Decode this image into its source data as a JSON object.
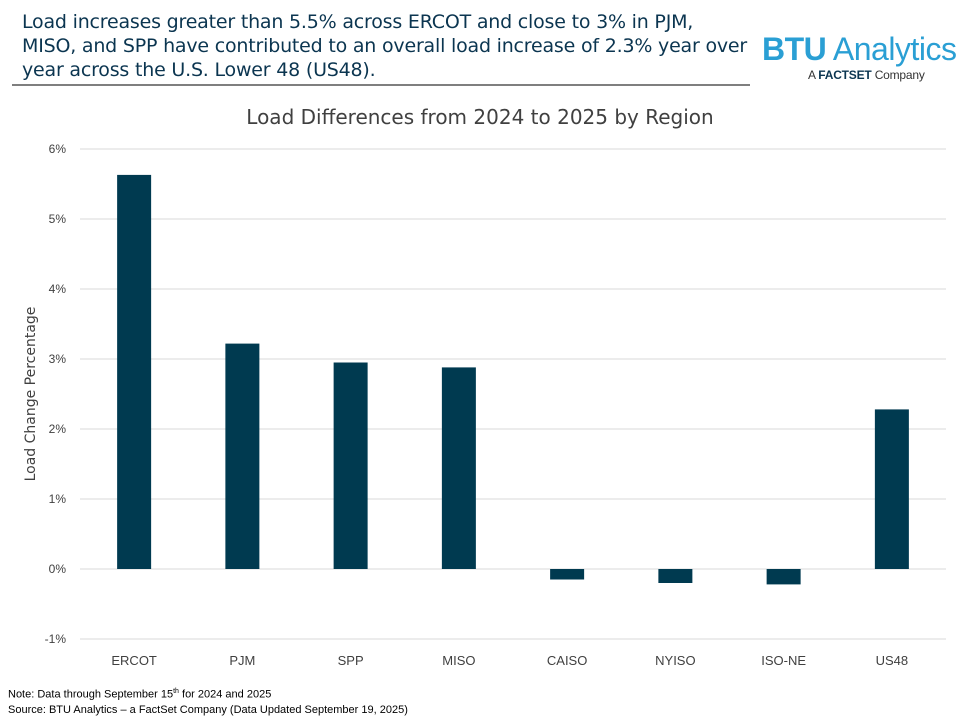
{
  "headline": "Load increases greater than 5.5% across ERCOT and close to 3% in PJM, MISO, and SPP have contributed to an overall load increase of 2.3% year over year across the U.S. Lower 48 (US48).",
  "logo": {
    "brand_bold": "BTU",
    "brand_rest": " Analytics",
    "tagline_prefix": "A ",
    "tagline_brand": "FACTSET",
    "tagline_suffix": " Company"
  },
  "chart_data": {
    "type": "bar",
    "title": "Load Differences from 2024 to 2025 by Region",
    "xlabel": "",
    "ylabel": "Load Change Percentage",
    "categories": [
      "ERCOT",
      "PJM",
      "SPP",
      "MISO",
      "CAISO",
      "NYISO",
      "ISO-NE",
      "US48"
    ],
    "values": [
      5.63,
      3.22,
      2.95,
      2.88,
      -0.15,
      -0.2,
      -0.22,
      2.28
    ],
    "ylim": [
      -1,
      6
    ],
    "yticks": [
      -1,
      0,
      1,
      2,
      3,
      4,
      5,
      6
    ],
    "ytick_labels": [
      "-1%",
      "0%",
      "1%",
      "2%",
      "3%",
      "4%",
      "5%",
      "6%"
    ],
    "grid": true,
    "bar_color": "#003a50",
    "grid_color": "#d9d9d9"
  },
  "footer": {
    "note_prefix": "Note: Data through September 15",
    "note_sup": "th",
    "note_suffix": " for 2024 and 2025",
    "source": "Source: BTU Analytics – a FactSet Company (Data Updated September 19, 2025)"
  }
}
